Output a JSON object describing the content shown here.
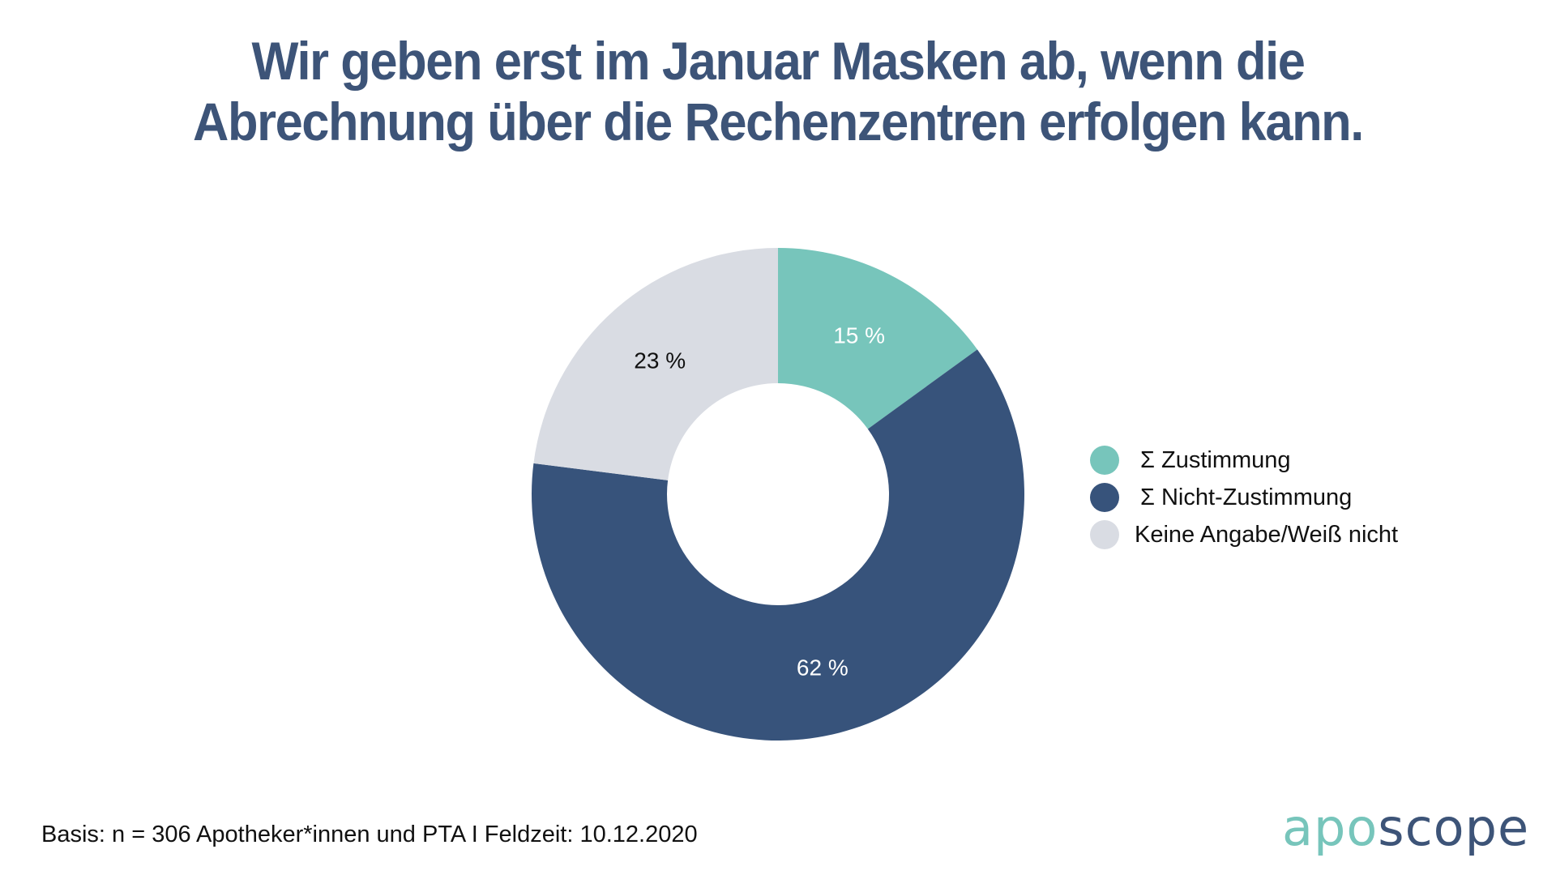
{
  "title": {
    "line1": "Wir geben erst im Januar Masken ab, wenn die",
    "line2": "Abrechnung über die Rechenzentren erfolgen kann."
  },
  "chart_data": {
    "type": "pie",
    "variant": "donut",
    "title": "Wir geben erst im Januar Masken ab, wenn die Abrechnung über die Rechenzentren erfolgen kann.",
    "unit": "%",
    "start_angle": "top, clockwise",
    "series": [
      {
        "name": "Σ Zustimmung",
        "value": 15,
        "label": "15 %",
        "color": "#77c5bb",
        "label_color": "#ffffff"
      },
      {
        "name": "Σ Nicht-Zustimmung",
        "value": 62,
        "label": "62 %",
        "color": "#37537b",
        "label_color": "#ffffff"
      },
      {
        "name": "Keine Angabe/Weiß nicht",
        "value": 23,
        "label": "23 %",
        "color": "#d9dce3",
        "label_color": "#111111"
      }
    ],
    "legend": {
      "position": "right",
      "entries": [
        "Σ Zustimmung",
        "Σ Nicht-Zustimmung",
        "Keine Angabe/Weiß nicht"
      ]
    }
  },
  "footer": {
    "note": "Basis: n = 306 Apotheker*innen und PTA I Feldzeit: 10.12.2020"
  },
  "logo": {
    "part1": "apo",
    "part2": "scope",
    "color1": "#77c5bb",
    "color2": "#3d5478"
  }
}
